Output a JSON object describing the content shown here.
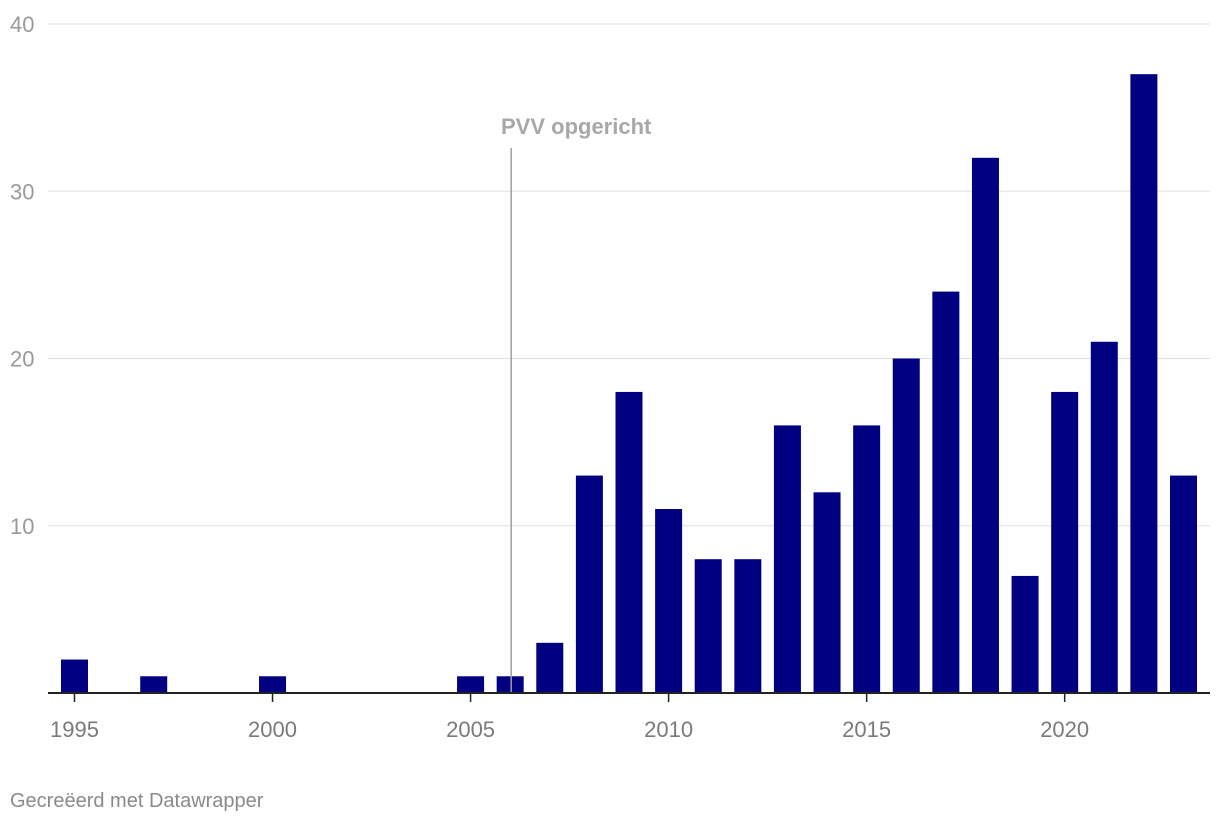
{
  "chart_data": {
    "type": "bar",
    "title": "",
    "xlabel": "",
    "ylabel": "",
    "x": [
      1995,
      1997,
      2000,
      2005,
      2006,
      2007,
      2008,
      2009,
      2010,
      2011,
      2012,
      2013,
      2014,
      2015,
      2016,
      2017,
      2018,
      2019,
      2020,
      2021,
      2022,
      2023
    ],
    "values": [
      2,
      1,
      1,
      1,
      1,
      3,
      13,
      18,
      11,
      8,
      8,
      16,
      12,
      16,
      20,
      24,
      32,
      7,
      18,
      21,
      37,
      13
    ],
    "xlim": [
      1995,
      2023
    ],
    "ylim": [
      0,
      40
    ],
    "y_ticks": [
      10,
      20,
      30,
      40
    ],
    "y_tick_labels": [
      "10",
      "20",
      "30",
      "40"
    ],
    "x_ticks": [
      1995,
      2000,
      2005,
      2010,
      2015,
      2020
    ],
    "x_tick_labels": [
      "1995",
      "2000",
      "2005",
      "2010",
      "2015",
      "2020"
    ],
    "grid": true,
    "bar_color": "#000080",
    "annotations": [
      {
        "x": 2006,
        "text": "PVV opgericht"
      }
    ]
  },
  "footer": {
    "credit": "Gecreëerd met Datawrapper"
  }
}
